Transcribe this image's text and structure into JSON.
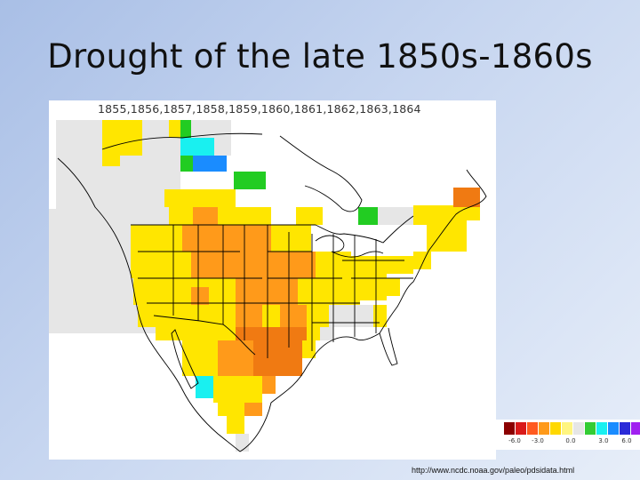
{
  "slide": {
    "title": "Drought of the late 1850s-1860s",
    "source_url": "http://www.ncdc.noaa.gov/paleo/pdsidata.html"
  },
  "map": {
    "years_label": "1855,1856,1857,1858,1859,1860,1861,1862,1863,1864",
    "legend": {
      "ticks": [
        "-6.0",
        "-3.0",
        "0.0",
        "3.0",
        "6.0"
      ],
      "colors": [
        "#8b0000",
        "#d91a1a",
        "#ff5a1f",
        "#ff9a1a",
        "#ffd800",
        "#fff580",
        "#e6e6e6",
        "#33cc33",
        "#19f0f0",
        "#1a8cff",
        "#2b2bd8",
        "#a020f0"
      ]
    },
    "colors": {
      "yellow": "#ffe600",
      "orange": "#ff9a1a",
      "dark_orange": "#f07a12",
      "gray": "#e6e6e6",
      "green": "#22cc22",
      "cyan": "#19f0f0",
      "blue": "#1a8cff"
    }
  }
}
